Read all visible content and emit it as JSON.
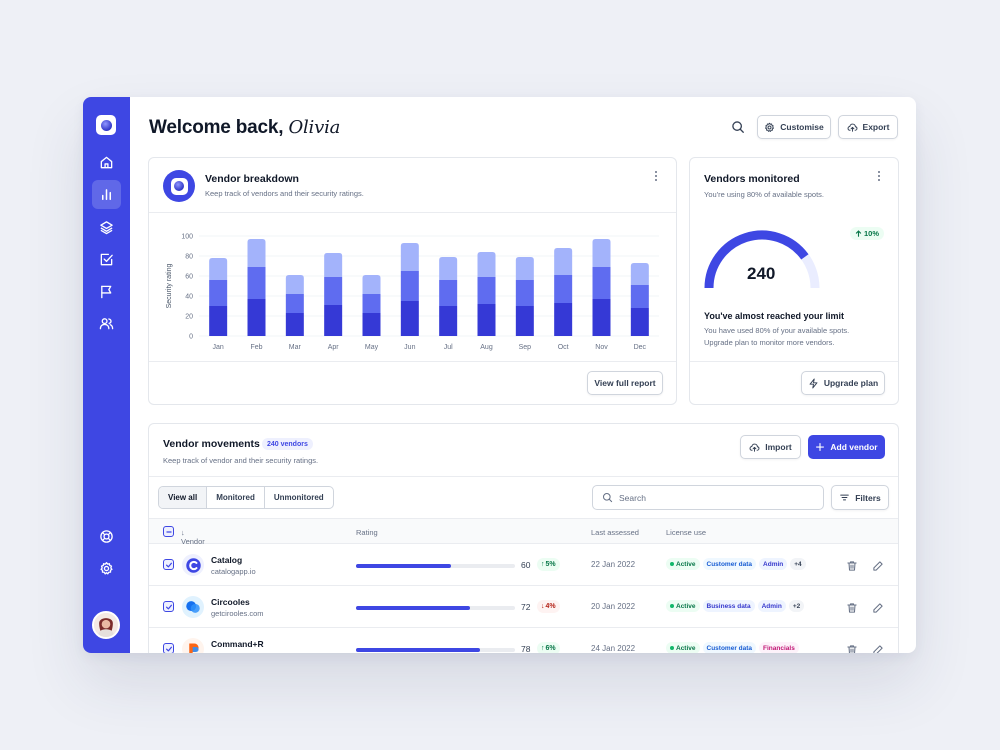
{
  "header": {
    "greeting": "Welcome back,",
    "user_name": "Olivia",
    "customise_label": "Customise",
    "export_label": "Export"
  },
  "sidebar": {
    "items": [
      "home",
      "charts",
      "layers",
      "tasks",
      "flags",
      "users",
      "support",
      "settings"
    ],
    "active": "charts"
  },
  "vendor_breakdown": {
    "title": "Vendor breakdown",
    "subtitle": "Keep track of vendors and their security ratings.",
    "button": "View full report"
  },
  "chart_data": {
    "type": "bar",
    "stacked": true,
    "categories": [
      "Jan",
      "Feb",
      "Mar",
      "Apr",
      "May",
      "Jun",
      "Jul",
      "Aug",
      "Sep",
      "Oct",
      "Nov",
      "Dec"
    ],
    "series": [
      {
        "values": [
          30,
          37,
          23,
          31,
          23,
          35,
          30,
          32,
          30,
          33,
          37,
          28
        ]
      },
      {
        "values": [
          26,
          32,
          19,
          28,
          19,
          30,
          26,
          27,
          26,
          28,
          32,
          23
        ]
      },
      {
        "values": [
          22,
          28,
          19,
          24,
          19,
          28,
          23,
          25,
          23,
          27,
          28,
          22
        ]
      }
    ],
    "ylabel": "Security rating",
    "yticks": [
      0,
      20,
      40,
      60,
      80,
      100
    ],
    "ylim": [
      0,
      100
    ],
    "colors": [
      "#3539d6",
      "#5f6cf0",
      "#a3b3fb"
    ],
    "grid": true
  },
  "vendors_monitored": {
    "title": "Vendors monitored",
    "subtitle": "You're using 80% of available spots.",
    "value": "240",
    "usage_fraction": 0.8,
    "change": "10%",
    "limit_title": "You've almost reached your limit",
    "limit_text": "You have used 80% of your available spots. Upgrade plan to monitor more vendors.",
    "button": "Upgrade plan"
  },
  "movements": {
    "title": "Vendor movements",
    "count": "240 vendors",
    "subtitle": "Keep track of vendor and their security ratings.",
    "import_label": "Import",
    "add_label": "Add vendor",
    "filters": [
      "View all",
      "Monitored",
      "Unmonitored"
    ],
    "search_placeholder": "Search",
    "filters_button": "Filters",
    "columns": {
      "vendor": "Vendor",
      "rating": "Rating",
      "last_assessed": "Last assessed",
      "license": "License use"
    },
    "rows": [
      {
        "name": "Catalog",
        "site": "catalogapp.io",
        "rating": 60,
        "rating_display": "60",
        "change": "5%",
        "direction": "up",
        "date": "22 Jan 2022",
        "tags": [
          "Active",
          "Customer data",
          "Admin",
          "+4"
        ]
      },
      {
        "name": "Circooles",
        "site": "getcirooles.com",
        "rating": 72,
        "rating_display": "72",
        "change": "4%",
        "direction": "down",
        "date": "20 Jan 2022",
        "tags": [
          "Active",
          "Business data",
          "Admin",
          "+2"
        ]
      },
      {
        "name": "Command+R",
        "site": "",
        "rating": 78,
        "rating_display": "78",
        "change": "6%",
        "direction": "up",
        "date": "24 Jan 2022",
        "tags": [
          "Active",
          "Customer data",
          "Financials"
        ]
      }
    ]
  }
}
